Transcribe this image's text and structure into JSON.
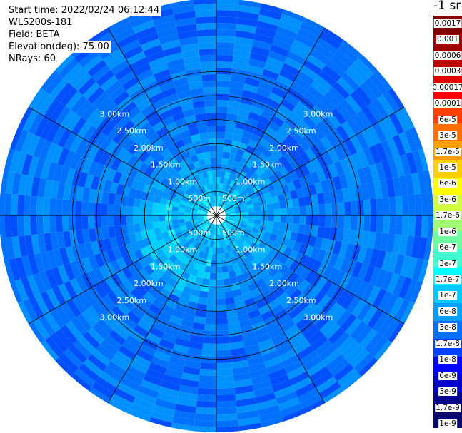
{
  "info": {
    "start_time": "Start time: 2022/02/24 06:12:44",
    "instrument": "WLS200s-181",
    "field": "Field: BETA",
    "elevation": "Elevation(deg): 75.00",
    "nrays": "NRays: 60"
  },
  "range_ring_labels": [
    "500m",
    "1.00km",
    "1.50km",
    "2.00km",
    "2.50km",
    "3.00km"
  ],
  "colorbar": {
    "unit": "-1 sr",
    "colors": [
      "#0a0a6e",
      "#00008c",
      "#0000c8",
      "#0000ff",
      "#0040ff",
      "#0070ff",
      "#00a0ff",
      "#00c8ff",
      "#00ffff",
      "#40ffd0",
      "#70ffa0",
      "#a0ff70",
      "#d0ff40",
      "#ffff00",
      "#ffd000",
      "#ffa000",
      "#ff7000",
      "#ff4000",
      "#ff0000",
      "#e00000",
      "#c00000",
      "#a00000",
      "#800000"
    ],
    "labels": [
      "1e-9",
      "1.7e-9",
      "3e-9",
      "6e-9",
      "1e-8",
      "1.7e-8",
      "3e-8",
      "6e-8",
      "1e-7",
      "1.7e-7",
      "3e-7",
      "6e-7",
      "1e-6",
      "1.7e-6",
      "3e-6",
      "6e-6",
      "1e-5",
      "1.7e-5",
      "3e-5",
      "6e-5",
      "0.0001",
      "0.00017",
      "0.0003",
      "0.0006",
      "0.001",
      "0.0017"
    ]
  }
}
